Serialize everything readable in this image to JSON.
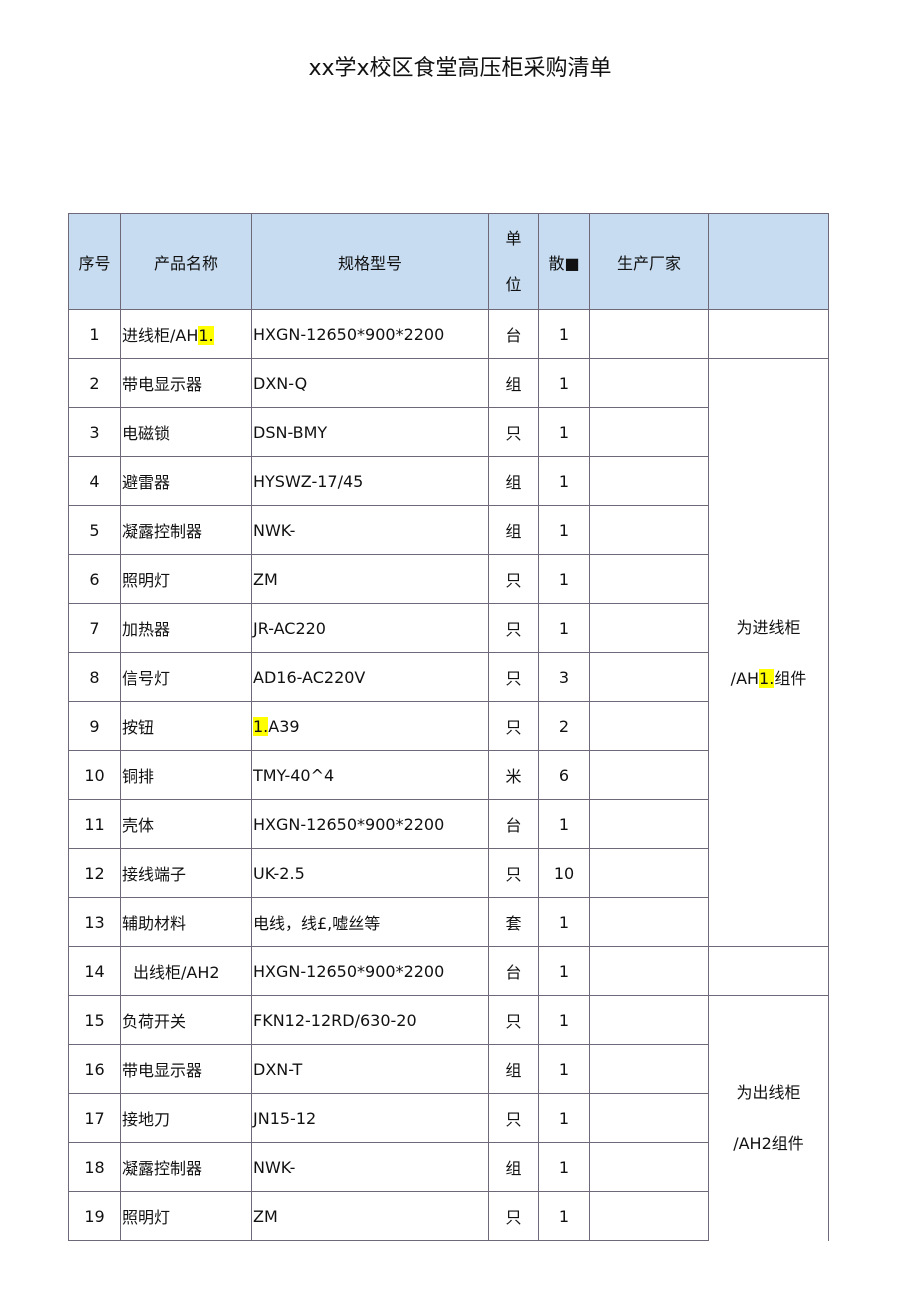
{
  "title": "xx学x校区食堂高压柜采购清单",
  "headers": {
    "no": "序号",
    "name": "产品名称",
    "spec": "规格型号",
    "unit_1": "单",
    "unit_2": "位",
    "qty": "散■",
    "maker": "生产厂家",
    "remark": ""
  },
  "rows": [
    {
      "no": "1",
      "name": "进线柜/AH",
      "name_hl": "1.",
      "spec": "HXGN-12650*900*2200",
      "unit": "台",
      "qty": "1"
    },
    {
      "no": "2",
      "name": "带电显示器",
      "spec": "DXN-Q",
      "unit": "组",
      "qty": "1"
    },
    {
      "no": "3",
      "name": "电磁锁",
      "spec": "DSN-BMY",
      "unit": "只",
      "qty": "1"
    },
    {
      "no": "4",
      "name": "避雷器",
      "spec": "HYSWZ-17/45",
      "unit": "组",
      "qty": "1"
    },
    {
      "no": "5",
      "name": "凝露控制器",
      "spec": "NWK-",
      "unit": "组",
      "qty": "1"
    },
    {
      "no": "6",
      "name": "照明灯",
      "spec": "ZM",
      "unit": "只",
      "qty": "1"
    },
    {
      "no": "7",
      "name": "加热器",
      "spec": "JR-AC220",
      "unit": "只",
      "qty": "1"
    },
    {
      "no": "8",
      "name": "信号灯",
      "spec": "AD16-AC220V",
      "unit": "只",
      "qty": "3"
    },
    {
      "no": "9",
      "name": "按钮",
      "spec_hl": "1.",
      "spec": "A39",
      "unit": "只",
      "qty": "2"
    },
    {
      "no": "10",
      "name": "铜排",
      "spec": "TMY-40^4",
      "unit": "米",
      "qty": "6"
    },
    {
      "no": "11",
      "name": "壳体",
      "spec": "HXGN-12650*900*2200",
      "unit": "台",
      "qty": "1"
    },
    {
      "no": "12",
      "name": "接线端子",
      "spec": "UK-2.5",
      "unit": "只",
      "qty": "10"
    },
    {
      "no": "13",
      "name": "辅助材料",
      "spec": "电线，线£,嘘丝等",
      "unit": "套",
      "qty": "1"
    },
    {
      "no": "14",
      "name": "出线柜/AH2",
      "spec": "HXGN-12650*900*2200",
      "unit": "台",
      "qty": "1"
    },
    {
      "no": "15",
      "name": "负荷开关",
      "spec": "FKN12-12RD/630-20",
      "unit": "只",
      "qty": "1"
    },
    {
      "no": "16",
      "name": "带电显示器",
      "spec": "DXN-T",
      "unit": "组",
      "qty": "1"
    },
    {
      "no": "17",
      "name": "接地刀",
      "spec": "JN15-12",
      "unit": "只",
      "qty": "1"
    },
    {
      "no": "18",
      "name": "凝露控制器",
      "spec": "NWK-",
      "unit": "组",
      "qty": "1"
    },
    {
      "no": "19",
      "name": "照明灯",
      "spec": "ZM",
      "unit": "只",
      "qty": "1"
    }
  ],
  "remarks": {
    "group1": {
      "line1": "为进线柜",
      "line2_a": "/AH",
      "line2_hl": "1.",
      "line2_b": "组件"
    },
    "group2": {
      "line1": "为出线柜",
      "line2_a": "/AH2组件"
    }
  },
  "colors": {
    "header_bg": "#c7dcf1",
    "highlight": "#ffff00",
    "border": "#6e6878"
  }
}
